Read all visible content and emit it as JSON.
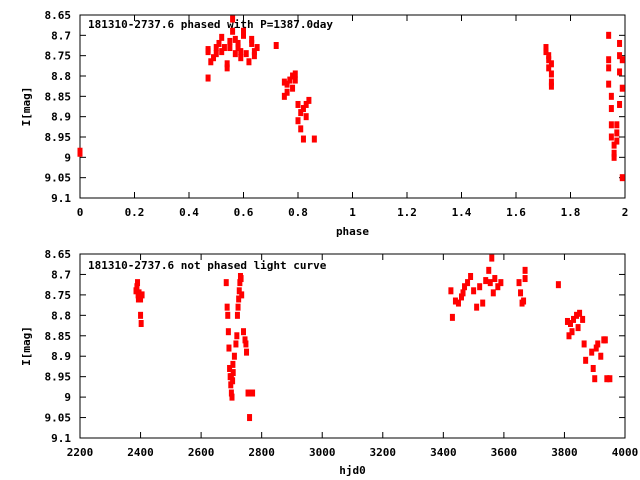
{
  "chart_data": [
    {
      "type": "scatter",
      "title": "181310-2737.6 phased with P=1387.0day",
      "xlabel": "phase",
      "ylabel": "I[mag]",
      "xlim": [
        0,
        2
      ],
      "ylim": [
        8.65,
        9.1
      ],
      "y_inverted": true,
      "grid": false,
      "x_ticks": [
        "0",
        "0.2",
        "0.4",
        "0.6",
        "0.8",
        "1",
        "1.2",
        "1.4",
        "1.6",
        "1.8",
        "2"
      ],
      "y_ticks": [
        "8.65",
        "8.7",
        "8.75",
        "8.8",
        "8.85",
        "8.9",
        "8.95",
        "9",
        "9.05",
        "9.1"
      ],
      "marker_color": "#ff0000",
      "series": [
        {
          "x": [
            0.0,
            0.0,
            0.47,
            0.47,
            0.48,
            0.47,
            0.49,
            0.5,
            0.5,
            0.51,
            0.52,
            0.52,
            0.53,
            0.54,
            0.54,
            0.55,
            0.55,
            0.56,
            0.56,
            0.57,
            0.57,
            0.58,
            0.58,
            0.59,
            0.59,
            0.6,
            0.6,
            0.61,
            0.62,
            0.63,
            0.63,
            0.64,
            0.64,
            0.65,
            0.72,
            0.75,
            0.75,
            0.76,
            0.76,
            0.77,
            0.78,
            0.78,
            0.79,
            0.79,
            0.8,
            0.8,
            0.81,
            0.81,
            0.82,
            0.82,
            0.83,
            0.83,
            0.84,
            0.86,
            1.71,
            1.71,
            1.72,
            1.72,
            1.72,
            1.73,
            1.73,
            1.73,
            1.73,
            1.94,
            1.94,
            1.94,
            1.94,
            1.95,
            1.95,
            1.95,
            1.95,
            1.96,
            1.96,
            1.96,
            1.97,
            1.97,
            1.97,
            1.98,
            1.98,
            1.98,
            1.98,
            1.99,
            1.99,
            1.99
          ],
          "y": [
            8.985,
            8.99,
            8.74,
            8.805,
            8.765,
            8.735,
            8.755,
            8.745,
            8.73,
            8.72,
            8.74,
            8.705,
            8.73,
            8.78,
            8.77,
            8.73,
            8.715,
            8.66,
            8.69,
            8.745,
            8.71,
            8.73,
            8.72,
            8.755,
            8.74,
            8.7,
            8.69,
            8.745,
            8.765,
            8.71,
            8.72,
            8.74,
            8.75,
            8.73,
            8.725,
            8.815,
            8.85,
            8.82,
            8.84,
            8.81,
            8.8,
            8.83,
            8.795,
            8.81,
            8.87,
            8.91,
            8.89,
            8.93,
            8.955,
            8.88,
            8.87,
            8.9,
            8.86,
            8.955,
            8.74,
            8.73,
            8.76,
            8.78,
            8.75,
            8.795,
            8.77,
            8.825,
            8.815,
            8.7,
            8.76,
            8.78,
            8.82,
            8.85,
            8.88,
            8.92,
            8.95,
            8.97,
            8.99,
            9.0,
            8.96,
            8.94,
            8.92,
            8.72,
            8.75,
            8.79,
            8.87,
            8.83,
            8.76,
            9.05
          ]
        }
      ]
    },
    {
      "type": "scatter",
      "title": "181310-2737.6 not phased light curve",
      "xlabel": "hjd0",
      "ylabel": "I[mag]",
      "xlim": [
        2200,
        4000
      ],
      "ylim": [
        8.65,
        9.1
      ],
      "y_inverted": true,
      "grid": false,
      "x_ticks": [
        "2200",
        "2400",
        "2600",
        "2800",
        "3000",
        "3200",
        "3400",
        "3600",
        "3800",
        "4000"
      ],
      "y_ticks": [
        "8.65",
        "8.7",
        "8.75",
        "8.8",
        "8.85",
        "8.9",
        "8.95",
        "9",
        "9.05",
        "9.1"
      ],
      "marker_color": "#ff0000",
      "series": [
        {
          "x": [
            2385,
            2388,
            2390,
            2392,
            2393,
            2395,
            2400,
            2402,
            2405,
            2400,
            2683,
            2686,
            2688,
            2690,
            2692,
            2694,
            2696,
            2698,
            2700,
            2702,
            2704,
            2706,
            2700,
            2705,
            2710,
            2715,
            2718,
            2720,
            2722,
            2724,
            2726,
            2728,
            2730,
            2732,
            2734,
            2740,
            2745,
            2748,
            2750,
            2755,
            2760,
            2770,
            3425,
            3430,
            3440,
            3450,
            3460,
            3465,
            3470,
            3480,
            3490,
            3500,
            3510,
            3520,
            3530,
            3540,
            3550,
            3555,
            3560,
            3565,
            3570,
            3580,
            3590,
            3650,
            3655,
            3660,
            3665,
            3670,
            3670,
            3780,
            3810,
            3815,
            3820,
            3825,
            3830,
            3840,
            3845,
            3850,
            3860,
            3865,
            3870,
            3890,
            3895,
            3900,
            3905,
            3910,
            3920,
            3930,
            3935,
            3940,
            3950
          ],
          "y": [
            8.74,
            8.73,
            8.72,
            8.75,
            8.76,
            8.745,
            8.8,
            8.82,
            8.75,
            8.76,
            8.72,
            8.78,
            8.8,
            8.84,
            8.88,
            8.93,
            8.95,
            8.97,
            8.99,
            9.0,
            8.96,
            8.94,
            8.95,
            8.92,
            8.9,
            8.87,
            8.85,
            8.8,
            8.78,
            8.76,
            8.74,
            8.72,
            8.705,
            8.71,
            8.75,
            8.84,
            8.86,
            8.87,
            8.89,
            8.99,
            9.05,
            8.99,
            8.74,
            8.805,
            8.765,
            8.77,
            8.755,
            8.745,
            8.73,
            8.72,
            8.705,
            8.74,
            8.78,
            8.73,
            8.77,
            8.715,
            8.69,
            8.72,
            8.66,
            8.745,
            8.71,
            8.73,
            8.72,
            8.72,
            8.745,
            8.77,
            8.765,
            8.71,
            8.69,
            8.725,
            8.815,
            8.85,
            8.82,
            8.84,
            8.81,
            8.8,
            8.83,
            8.795,
            8.81,
            8.87,
            8.91,
            8.89,
            8.93,
            8.955,
            8.88,
            8.87,
            8.9,
            8.86,
            8.86,
            8.955,
            8.955
          ]
        }
      ]
    }
  ]
}
